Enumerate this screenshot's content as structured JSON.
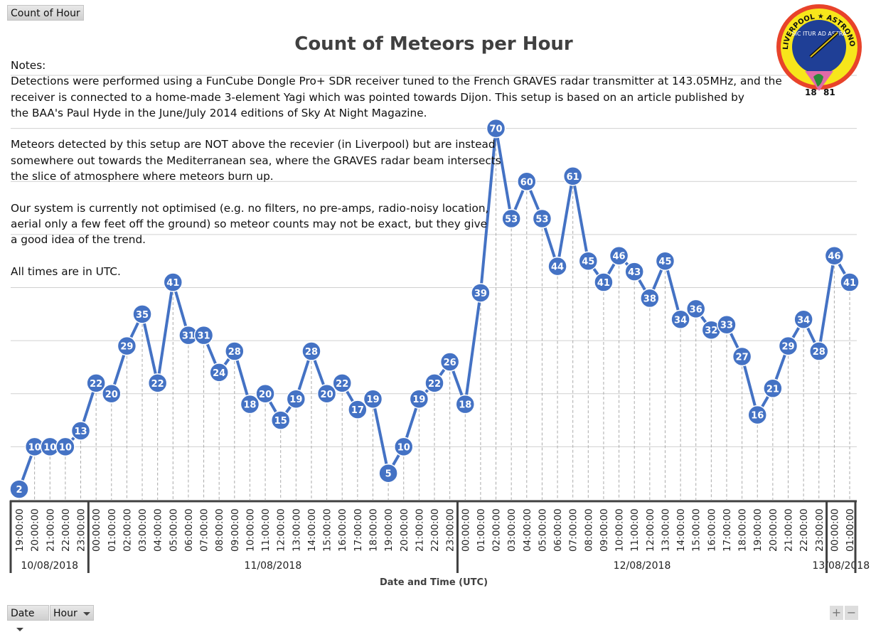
{
  "pivot_buttons": {
    "value_field": "Count of Hour",
    "date_field": "Date",
    "hour_field": "Hour",
    "zoom_in": "+",
    "zoom_out": "−"
  },
  "logo": {
    "text_top": "LIVERPOOL ★ ASTRONOMICAL ★ SOCIETY",
    "motto": "SIC ITUR AD ASTRA",
    "year_left": "18",
    "year_right": "81"
  },
  "notes": [
    "Notes:",
    "Detections were performed using a FunCube Dongle Pro+ SDR receiver tuned to the French GRAVES radar transmitter at 143.05MHz, and the",
    "receiver is connected to a home-made 3-element Yagi which was pointed towards Dijon. This setup is based on an article published by",
    "the BAA's Paul Hyde in the June/July 2014 editions of Sky At Night Magazine.",
    "",
    "Meteors detected by this setup are NOT above the recevier (in Liverpool) but are instead",
    "somewhere out towards the Mediterranean sea, where the GRAVES radar beam intersects",
    "the slice of atmosphere where meteors burn up.",
    "",
    "Our system is currently not optimised (e.g. no filters, no pre-amps, radio-noisy location,",
    "aerial only a few feet off the ground) so meteor counts may not be exact, but they give",
    "a good idea of the trend.",
    "",
    "All times are in UTC."
  ],
  "colors": {
    "series": "#4472C4",
    "grid": "#d0d0d0",
    "axis": "#404040",
    "text": "#404040"
  },
  "chart_data": {
    "type": "line",
    "title": "Count of Meteors per Hour",
    "xlabel": "Date and Time (UTC)",
    "ylabel": "",
    "ylim": [
      0,
      80
    ],
    "grid": true,
    "gridlines": [
      10,
      20,
      30,
      40,
      50,
      60,
      70,
      80
    ],
    "data_labels": true,
    "groups": [
      {
        "date": "10/08/2018",
        "hours": [
          "19:00:00",
          "20:00:00",
          "21:00:00",
          "22:00:00",
          "23:00:00"
        ],
        "values": [
          2,
          10,
          10,
          10,
          13
        ]
      },
      {
        "date": "11/08/2018",
        "hours": [
          "00:00:00",
          "01:00:00",
          "02:00:00",
          "03:00:00",
          "04:00:00",
          "05:00:00",
          "06:00:00",
          "07:00:00",
          "08:00:00",
          "09:00:00",
          "10:00:00",
          "11:00:00",
          "12:00:00",
          "13:00:00",
          "14:00:00",
          "15:00:00",
          "16:00:00",
          "17:00:00",
          "18:00:00",
          "19:00:00",
          "20:00:00",
          "21:00:00",
          "22:00:00",
          "23:00:00"
        ],
        "values": [
          22,
          20,
          29,
          35,
          22,
          41,
          31,
          31,
          24,
          28,
          18,
          20,
          15,
          19,
          28,
          20,
          22,
          17,
          19,
          5,
          10,
          19,
          22,
          26
        ]
      },
      {
        "date": "12/08/2018",
        "hours": [
          "00:00:00",
          "01:00:00",
          "02:00:00",
          "03:00:00",
          "04:00:00",
          "05:00:00",
          "06:00:00",
          "07:00:00",
          "08:00:00",
          "09:00:00",
          "10:00:00",
          "11:00:00",
          "12:00:00",
          "13:00:00",
          "14:00:00",
          "15:00:00",
          "16:00:00",
          "17:00:00",
          "18:00:00",
          "19:00:00",
          "20:00:00",
          "21:00:00",
          "22:00:00",
          "23:00:00"
        ],
        "values": [
          18,
          39,
          70,
          53,
          60,
          53,
          44,
          61,
          45,
          41,
          46,
          43,
          38,
          45,
          34,
          36,
          32,
          33,
          27,
          16,
          21,
          29,
          34,
          28
        ]
      },
      {
        "date": "13/08/2018",
        "hours": [
          "00:00:00",
          "01:00:00"
        ],
        "values": [
          46,
          41
        ]
      }
    ]
  }
}
